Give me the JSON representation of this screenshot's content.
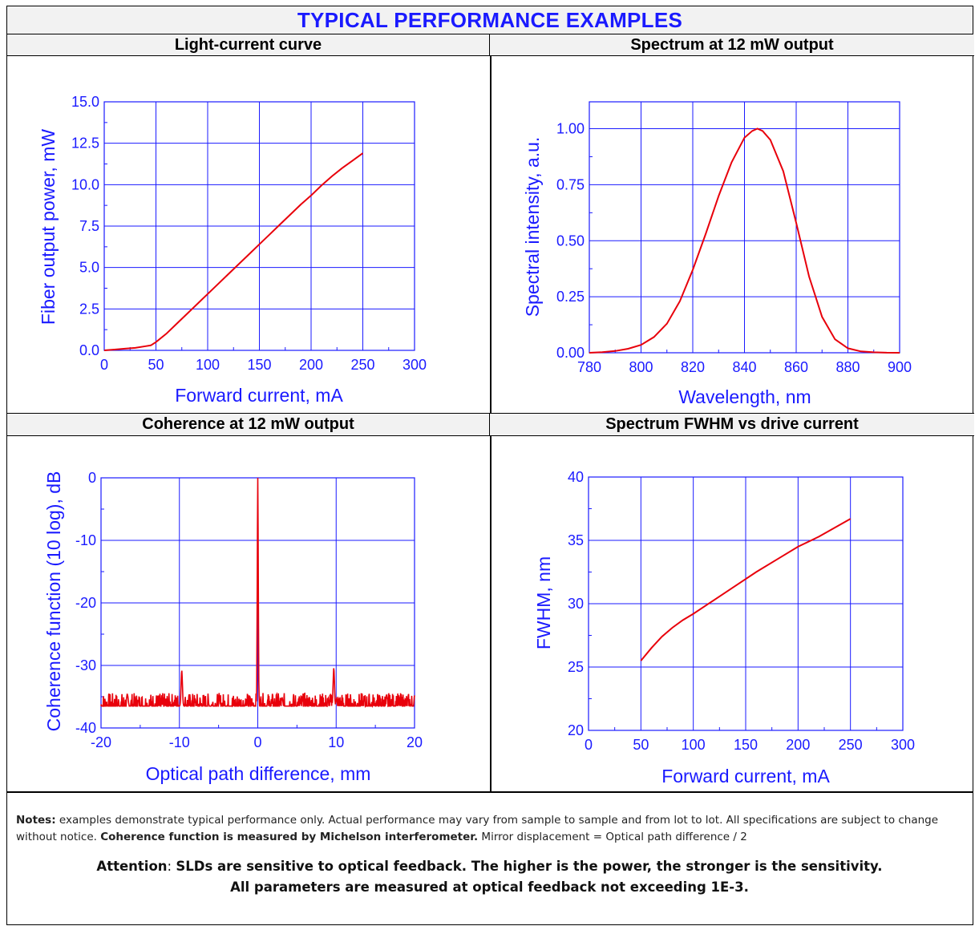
{
  "page_title": "TYPICAL PERFORMANCE EXAMPLES",
  "notes": {
    "label": "Notes:",
    "text1": " examples demonstrate typical performance only. Actual performance may vary from sample to sample and from lot to lot. All specifications are subject to change without notice. ",
    "bold": "Coherence function is measured by Michelson interferometer.",
    "text2": " Mirror displacement = Optical path difference / 2"
  },
  "attention": {
    "label": "Attention",
    "sep": ": ",
    "line1": "SLDs are sensitive to optical feedback. The higher is the power, the stronger is the sensitivity.",
    "line2": "All parameters are measured at optical feedback not exceeding 1E-3."
  },
  "colors": {
    "axis": "#1a1aff",
    "grid": "#1a1aff",
    "curve": "#e8000b"
  },
  "chart_data": [
    {
      "header": "Light-current curve",
      "type": "line",
      "xlabel": "Forward current, mA",
      "ylabel": "Fiber output power, mW",
      "xlim": [
        0,
        300
      ],
      "ylim": [
        0,
        15
      ],
      "xticks": [
        0,
        50,
        100,
        150,
        200,
        250,
        300
      ],
      "xtick_labels": [
        "0",
        "50",
        "100",
        "150",
        "200",
        "250",
        "300"
      ],
      "yticks": [
        0,
        2.5,
        5,
        7.5,
        10,
        12.5,
        15
      ],
      "ytick_labels": [
        "0.0",
        "2.5",
        "5.0",
        "7.5",
        "10.0",
        "12.5",
        "15.0"
      ],
      "grid": true,
      "series": [
        {
          "x": [
            0,
            10,
            20,
            30,
            40,
            45,
            50,
            60,
            70,
            80,
            90,
            100,
            110,
            120,
            130,
            140,
            150,
            160,
            170,
            180,
            190,
            200,
            210,
            220,
            230,
            240,
            250
          ],
          "y": [
            0,
            0.05,
            0.1,
            0.15,
            0.25,
            0.3,
            0.5,
            1.0,
            1.6,
            2.2,
            2.8,
            3.4,
            4.0,
            4.6,
            5.2,
            5.8,
            6.4,
            7.0,
            7.6,
            8.2,
            8.8,
            9.35,
            9.95,
            10.5,
            11.0,
            11.45,
            11.9
          ]
        }
      ]
    },
    {
      "header": "Spectrum at 12 mW output",
      "type": "line",
      "xlabel": "Wavelength, nm",
      "ylabel": "Spectral intensity, a.u.",
      "xlim": [
        780,
        900
      ],
      "ylim": [
        0,
        1.12
      ],
      "xticks": [
        780,
        800,
        820,
        840,
        860,
        880,
        900
      ],
      "xtick_labels": [
        "780",
        "800",
        "820",
        "840",
        "860",
        "880",
        "900"
      ],
      "yticks": [
        0,
        0.25,
        0.5,
        0.75,
        1.0
      ],
      "ytick_labels": [
        "0.00",
        "0.25",
        "0.50",
        "0.75",
        "1.00"
      ],
      "grid": true,
      "series": [
        {
          "x": [
            780,
            785,
            790,
            795,
            800,
            805,
            810,
            815,
            820,
            825,
            830,
            835,
            840,
            843,
            845,
            847,
            850,
            855,
            860,
            865,
            870,
            875,
            880,
            885,
            890,
            895,
            900
          ],
          "y": [
            0.0,
            0.003,
            0.008,
            0.018,
            0.035,
            0.07,
            0.13,
            0.23,
            0.37,
            0.53,
            0.7,
            0.85,
            0.96,
            0.99,
            1.0,
            0.99,
            0.95,
            0.81,
            0.58,
            0.34,
            0.16,
            0.06,
            0.02,
            0.006,
            0.002,
            0.0005,
            0.0
          ]
        }
      ]
    },
    {
      "header": "Coherence at 12 mW output",
      "type": "line",
      "xlabel": "Optical path difference, mm",
      "ylabel": "Coherence function (10 log), dB",
      "xlim": [
        -20,
        20
      ],
      "ylim": [
        -40,
        0
      ],
      "xticks": [
        -20,
        -10,
        0,
        10,
        20
      ],
      "xtick_labels": [
        "-20",
        "-10",
        "0",
        "10",
        "20"
      ],
      "yticks": [
        -40,
        -30,
        -20,
        -10,
        0
      ],
      "ytick_labels": [
        "-40",
        "-30",
        "-20",
        "-10",
        "0"
      ],
      "grid": true,
      "noise_floor_db": -36.5,
      "peaks": [
        {
          "x": -9.7,
          "y": -30.8
        },
        {
          "x": 0,
          "y": 0
        },
        {
          "x": 9.7,
          "y": -30.4
        }
      ]
    },
    {
      "header": "Spectrum FWHM vs drive current",
      "type": "line",
      "xlabel": "Forward current, mA",
      "ylabel": "FWHM, nm",
      "xlim": [
        0,
        300
      ],
      "ylim": [
        20,
        40
      ],
      "xticks": [
        0,
        50,
        100,
        150,
        200,
        250,
        300
      ],
      "xtick_labels": [
        "0",
        "50",
        "100",
        "150",
        "200",
        "250",
        "300"
      ],
      "yticks": [
        20,
        25,
        30,
        35,
        40
      ],
      "ytick_labels": [
        "20",
        "25",
        "30",
        "35",
        "40"
      ],
      "grid": true,
      "series": [
        {
          "x": [
            50,
            60,
            70,
            80,
            90,
            100,
            120,
            140,
            160,
            180,
            200,
            220,
            250
          ],
          "y": [
            25.5,
            26.5,
            27.4,
            28.1,
            28.7,
            29.2,
            30.3,
            31.4,
            32.5,
            33.5,
            34.5,
            35.3,
            36.7
          ]
        }
      ]
    }
  ]
}
